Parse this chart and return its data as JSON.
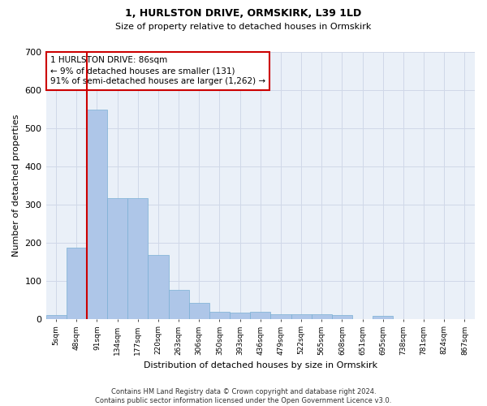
{
  "title": "1, HURLSTON DRIVE, ORMSKIRK, L39 1LD",
  "subtitle": "Size of property relative to detached houses in Ormskirk",
  "xlabel": "Distribution of detached houses by size in Ormskirk",
  "ylabel": "Number of detached properties",
  "categories": [
    "5sqm",
    "48sqm",
    "91sqm",
    "134sqm",
    "177sqm",
    "220sqm",
    "263sqm",
    "306sqm",
    "350sqm",
    "393sqm",
    "436sqm",
    "479sqm",
    "522sqm",
    "565sqm",
    "608sqm",
    "651sqm",
    "695sqm",
    "738sqm",
    "781sqm",
    "824sqm",
    "867sqm"
  ],
  "values": [
    10,
    186,
    548,
    317,
    317,
    168,
    77,
    41,
    18,
    17,
    18,
    12,
    12,
    12,
    9,
    0,
    8,
    0,
    0,
    0,
    0
  ],
  "bar_color": "#aec6e8",
  "bar_edge_color": "#7aafd4",
  "grid_color": "#d0d8e8",
  "background_color": "#eaf0f8",
  "vline_color": "#cc0000",
  "annotation_text": "1 HURLSTON DRIVE: 86sqm\n← 9% of detached houses are smaller (131)\n91% of semi-detached houses are larger (1,262) →",
  "annotation_box_color": "#cc0000",
  "footer": "Contains HM Land Registry data © Crown copyright and database right 2024.\nContains public sector information licensed under the Open Government Licence v3.0.",
  "ylim": [
    0,
    700
  ],
  "yticks": [
    0,
    100,
    200,
    300,
    400,
    500,
    600,
    700
  ]
}
